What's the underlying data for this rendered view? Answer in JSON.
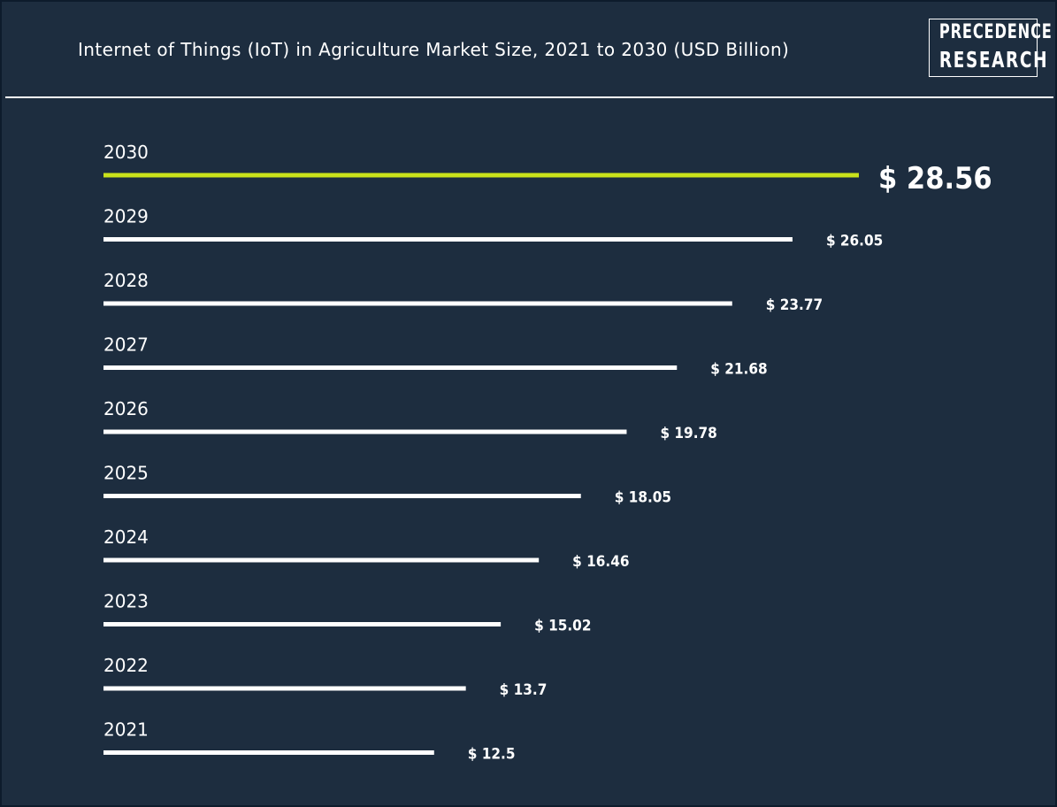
{
  "header": {
    "title": "Internet of Things (IoT) in Agriculture Market Size, 2021 to 2030 (USD Billion)",
    "logo_line1": "PRECEDENCE",
    "logo_line2": "RESEARCH"
  },
  "colors": {
    "background": "#1d2d3f",
    "bar": "#ffffff",
    "highlight": "#c9e21b",
    "text": "#ffffff"
  },
  "chart_data": {
    "type": "bar",
    "orientation": "horizontal",
    "title": "Internet of Things (IoT) in Agriculture Market Size, 2021 to 2030 (USD Billion)",
    "xlabel": "",
    "ylabel": "",
    "currency_prefix": "$ ",
    "highlight_category": "2030",
    "categories": [
      "2030",
      "2029",
      "2028",
      "2027",
      "2026",
      "2025",
      "2024",
      "2023",
      "2022",
      "2021"
    ],
    "values": [
      28.56,
      26.05,
      23.77,
      21.68,
      19.78,
      18.05,
      16.46,
      15.02,
      13.7,
      12.5
    ],
    "value_labels": [
      "28.56",
      "26.05",
      "23.77",
      "21.68",
      "19.78",
      "18.05",
      "16.46",
      "15.02",
      "13.7",
      "12.5"
    ],
    "grid": false,
    "legend": "none"
  }
}
